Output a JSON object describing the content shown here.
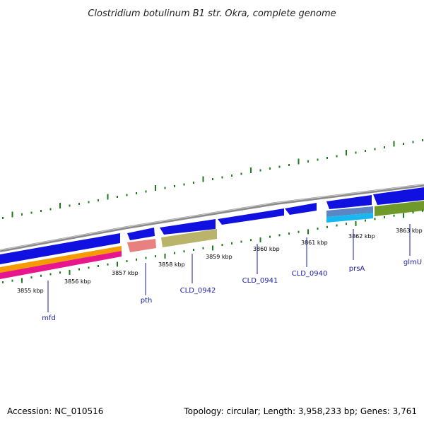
{
  "title": "Clostridium botulinum B1 str. Okra, complete genome",
  "footer": {
    "accession": "Accession: NC_010516",
    "topology": "Topology: circular; Length: 3,958,233 bp; Genes: 3,761"
  },
  "colors": {
    "backbone": "#8a8a8a",
    "forward_gene": "#1010e0",
    "gc_ticks": "#1d7a1d",
    "pink_track": "#e8168c",
    "orange_track": "#f59a00",
    "salmon_gene": "#e98080",
    "khaki_gene": "#b9b46a",
    "steel_gene": "#5b86c4",
    "cyan_gene": "#19b7f0",
    "olive_gene": "#6f9a2a",
    "label_text": "#1a1aa8"
  },
  "kbp_labels": [
    {
      "label": "3855 kbp"
    },
    {
      "label": "3856 kbp"
    },
    {
      "label": "3857 kbp"
    },
    {
      "label": "3858 kbp"
    },
    {
      "label": "3859 kbp"
    },
    {
      "label": "3860 kbp"
    },
    {
      "label": "3861 kbp"
    },
    {
      "label": "3862 kbp"
    },
    {
      "label": "3863 kbp"
    }
  ],
  "genes": [
    {
      "name": "mfd"
    },
    {
      "name": "pth"
    },
    {
      "name": "CLD_0942"
    },
    {
      "name": "CLD_0941"
    },
    {
      "name": "CLD_0940"
    },
    {
      "name": "prsA"
    },
    {
      "name": "glmU"
    }
  ]
}
